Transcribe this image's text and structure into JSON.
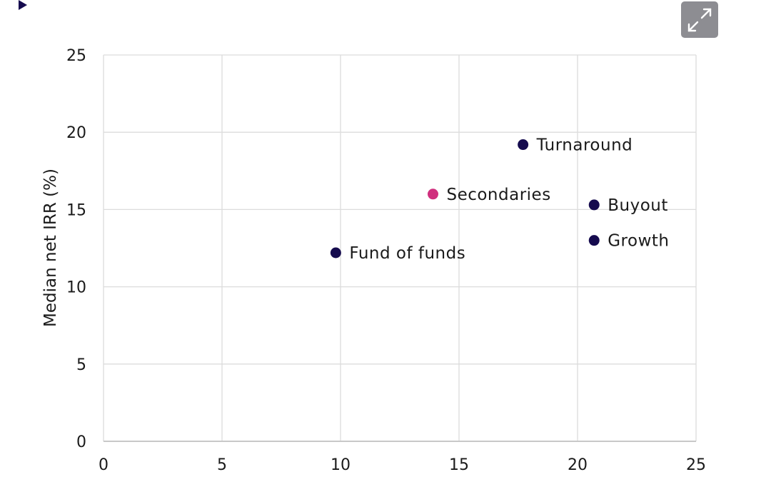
{
  "ui": {
    "expand_button": {
      "icon": "expand-arrows-icon",
      "color": "#8d8d92"
    },
    "corner_marker": {
      "icon": "play-triangle-icon",
      "color": "#150b4e"
    }
  },
  "chart_data": {
    "type": "scatter",
    "title": "",
    "xlabel": "",
    "ylabel": "Median net IRR (%)",
    "xlim": [
      0,
      25
    ],
    "ylim": [
      0,
      25
    ],
    "xticks": [
      0,
      5,
      10,
      15,
      20,
      25
    ],
    "yticks": [
      0,
      5,
      10,
      15,
      20,
      25
    ],
    "grid": true,
    "legend": "none",
    "colors": {
      "default": "#150b4e",
      "highlight": "#d02f7e",
      "grid": "#dcdcdc"
    },
    "points": [
      {
        "label": "Turnaround",
        "x": 17.7,
        "y": 19.2,
        "highlight": false
      },
      {
        "label": "Secondaries",
        "x": 13.9,
        "y": 16.0,
        "highlight": true
      },
      {
        "label": "Buyout",
        "x": 20.7,
        "y": 15.3,
        "highlight": false
      },
      {
        "label": "Growth",
        "x": 20.7,
        "y": 13.0,
        "highlight": false
      },
      {
        "label": "Fund of funds",
        "x": 9.8,
        "y": 12.2,
        "highlight": false
      }
    ]
  }
}
